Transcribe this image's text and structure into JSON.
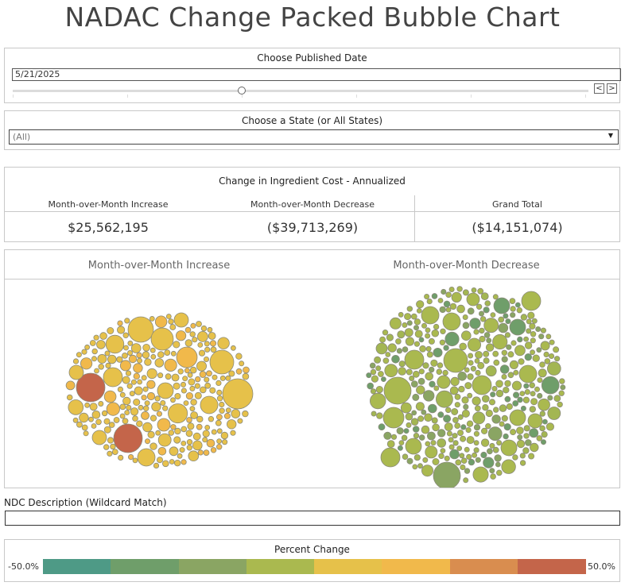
{
  "title": "NADAC Change Packed Bubble Chart",
  "date_filter": {
    "label": "Choose Published Date",
    "value": "5/21/2025",
    "prev_glyph": "<",
    "next_glyph": ">"
  },
  "state_filter": {
    "label": "Choose a State (or All States)",
    "value": "(All)",
    "arrow_glyph": "▼"
  },
  "kpi": {
    "title": "Change in Ingredient Cost - Annualized",
    "columns": [
      {
        "header": "Month-over-Month Increase",
        "value": "$25,562,195"
      },
      {
        "header": "Month-over-Month Decrease",
        "value": "($39,713,269)"
      },
      {
        "header": "Grand Total",
        "value": "($14,151,074)"
      }
    ]
  },
  "bubbles": {
    "increase_title": "Month-over-Month Increase",
    "decrease_title": "Month-over-Month Decrease"
  },
  "ndc": {
    "label": "NDC Description (Wildcard Match)",
    "value": ""
  },
  "legend": {
    "title": "Percent Change",
    "min_label": "-50.0%",
    "max_label": "50.0%",
    "colors": [
      "#4e9a86",
      "#6f9e6a",
      "#8aa563",
      "#aab94f",
      "#e6c14a",
      "#f1b94b",
      "#d98d4f",
      "#c4654a"
    ]
  }
}
